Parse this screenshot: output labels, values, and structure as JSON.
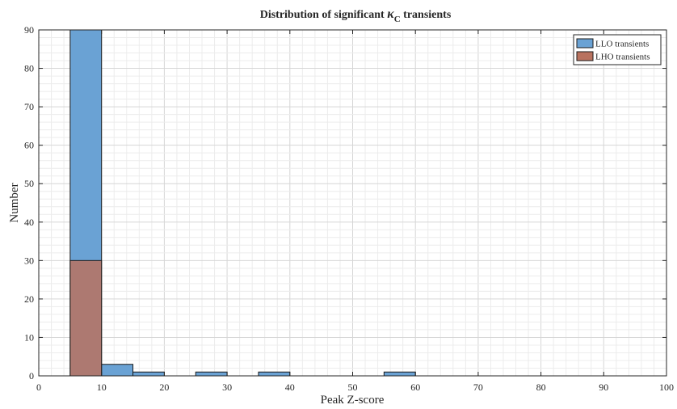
{
  "chart_data": {
    "type": "bar",
    "title": "Distribution of significant κC transients",
    "xlabel": "Peak Z-score",
    "ylabel": "Number",
    "xlim": [
      0,
      100
    ],
    "ylim": [
      0,
      90
    ],
    "x_ticks": [
      0,
      10,
      20,
      30,
      40,
      50,
      60,
      70,
      80,
      90,
      100
    ],
    "y_ticks": [
      0,
      10,
      20,
      30,
      40,
      50,
      60,
      70,
      80,
      90
    ],
    "grid": true,
    "minor_grid": true,
    "legend_position": "top-right",
    "series": [
      {
        "name": "LLO transients",
        "color": "#6aa2d4",
        "bins": [
          {
            "x0": 5,
            "x1": 10,
            "count": 90
          },
          {
            "x0": 10,
            "x1": 15,
            "count": 3
          },
          {
            "x0": 15,
            "x1": 20,
            "count": 1
          },
          {
            "x0": 25,
            "x1": 30,
            "count": 1
          },
          {
            "x0": 35,
            "x1": 40,
            "count": 1
          },
          {
            "x0": 55,
            "x1": 60,
            "count": 1
          }
        ]
      },
      {
        "name": "LHO transients",
        "color": "#b9725f",
        "bins": [
          {
            "x0": 5,
            "x1": 10,
            "count": 30
          }
        ]
      }
    ]
  }
}
